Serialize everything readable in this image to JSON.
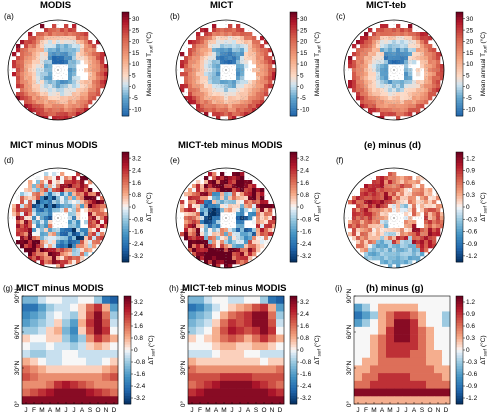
{
  "chart_data": [
    {
      "type": "map",
      "letter": "(a)",
      "title": "MODIS",
      "scheme": "temp",
      "colorbar": {
        "label": "Mean annual T",
        "sub": "surf",
        "unit": "(°C)",
        "ticks": [
          "30",
          "25",
          "20",
          "15",
          "10",
          "5",
          "0",
          "-5",
          "-10"
        ],
        "range": [
          -13,
          33
        ]
      }
    },
    {
      "type": "map",
      "letter": "(b)",
      "title": "MICT",
      "scheme": "temp",
      "colorbar": {
        "label": "Mean annual T",
        "sub": "surf",
        "unit": "(°C)",
        "ticks": [
          "30",
          "25",
          "20",
          "15",
          "10",
          "5",
          "0",
          "-5",
          "-10"
        ],
        "range": [
          -13,
          33
        ]
      }
    },
    {
      "type": "map",
      "letter": "(c)",
      "title": "MICT-teb",
      "scheme": "temp",
      "colorbar": {
        "label": "Mean annual T",
        "sub": "surf",
        "unit": "(°C)",
        "ticks": [
          "30",
          "25",
          "20",
          "15",
          "10",
          "5",
          "0",
          "-5",
          "-10"
        ],
        "range": [
          -13,
          33
        ]
      }
    },
    {
      "type": "map",
      "letter": "(d)",
      "title": "MICT minus MODIS",
      "scheme": "diff",
      "colorbar": {
        "label": "ΔT",
        "sub": "surf",
        "unit": "(°C)",
        "ticks": [
          "3.2",
          "2.4",
          "1.6",
          "0.8",
          "0",
          "-0.8",
          "-1.6",
          "-2.4",
          "-3.2"
        ],
        "range": [
          -3.6,
          3.6
        ]
      }
    },
    {
      "type": "map",
      "letter": "(e)",
      "title": "MICT-teb minus MODIS",
      "scheme": "diff",
      "colorbar": {
        "label": "ΔT",
        "sub": "surf",
        "unit": "(°C)",
        "ticks": [
          "3.2",
          "2.4",
          "1.6",
          "0.8",
          "0",
          "-0.8",
          "-1.6",
          "-2.4",
          "-3.2"
        ],
        "range": [
          -3.6,
          3.6
        ]
      }
    },
    {
      "type": "map",
      "letter": "(f)",
      "title": "(e) minus (d)",
      "scheme": "diff2",
      "colorbar": {
        "label": "ΔT",
        "sub": "surf",
        "unit": "(°C)",
        "ticks": [
          "1.2",
          "0.9",
          "0.6",
          "0.3",
          "0",
          "-0.3",
          "-0.6",
          "-0.9",
          "-1.2"
        ],
        "range": [
          -1.35,
          1.35
        ]
      }
    },
    {
      "type": "heatmap",
      "letter": "(g)",
      "title": "MICT minus MODIS",
      "x": [
        "J",
        "F",
        "M",
        "A",
        "M",
        "J",
        "J",
        "A",
        "S",
        "O",
        "N",
        "D"
      ],
      "y_ticks": [
        "0°",
        "30°N",
        "60°N",
        "90°N"
      ],
      "colorbar": {
        "label": "ΔT",
        "sub": "surf",
        "unit": "(°C)",
        "ticks": [
          "3.2",
          "2.4",
          "1.6",
          "0.8",
          "0",
          "-0.8",
          "-1.6",
          "-2.4",
          "-3.2"
        ],
        "range": [
          -3.6,
          3.6
        ]
      },
      "rows_lat_desc": [
        [
          -1.2,
          -1.2,
          -0.4,
          0,
          0,
          -0.4,
          -0.4,
          0,
          0,
          -0.8,
          -2.4,
          -2.8
        ],
        [
          -2.4,
          -2.4,
          -1.6,
          -0.8,
          -0.4,
          -0.4,
          0,
          0.4,
          1.6,
          2.4,
          0.8,
          -1.6
        ],
        [
          -2.0,
          -1.6,
          -1.2,
          -0.4,
          0,
          -0.4,
          -0.8,
          0.4,
          2.0,
          3.2,
          1.6,
          -0.8
        ],
        [
          -1.6,
          -1.2,
          -0.8,
          -0.4,
          0.4,
          -0.8,
          -1.6,
          0.8,
          2.4,
          3.2,
          2.0,
          -0.4
        ],
        [
          -0.8,
          -0.8,
          -0.4,
          0.4,
          0.8,
          -1.2,
          -2.0,
          0.4,
          2.0,
          3.2,
          2.4,
          0
        ],
        [
          0.4,
          0,
          0,
          0.4,
          0.4,
          -0.8,
          -1.6,
          -0.8,
          1.2,
          2.4,
          1.6,
          0.8
        ],
        [
          0,
          -0.4,
          -0.4,
          0,
          -0.4,
          -0.4,
          -0.8,
          -0.4,
          0.4,
          0.8,
          0.4,
          0
        ],
        [
          -0.4,
          -0.8,
          -0.8,
          -0.4,
          -0.4,
          0,
          0,
          -0.4,
          -0.4,
          -0.4,
          -0.4,
          -0.4
        ],
        [
          0.8,
          0.4,
          0,
          -0.4,
          -0.4,
          0,
          0,
          0,
          -0.4,
          -0.4,
          0,
          0.4
        ],
        [
          1.6,
          1.2,
          0.8,
          0.4,
          0.4,
          0.4,
          0.4,
          0.4,
          0.4,
          0.4,
          0.8,
          1.2
        ],
        [
          2.0,
          1.6,
          1.2,
          1.2,
          1.2,
          1.2,
          1.2,
          1.2,
          1.2,
          1.2,
          1.6,
          2.0
        ],
        [
          1.2,
          1.2,
          1.2,
          1.6,
          2.4,
          2.8,
          2.4,
          2.0,
          1.6,
          1.2,
          1.2,
          1.2
        ],
        [
          1.6,
          2.0,
          2.4,
          2.8,
          3.2,
          3.2,
          3.2,
          3.2,
          2.8,
          2.4,
          2.0,
          1.6
        ],
        [
          3.2,
          3.2,
          3.2,
          3.2,
          3.2,
          3.2,
          3.2,
          3.2,
          3.2,
          3.2,
          3.2,
          3.2
        ]
      ]
    },
    {
      "type": "heatmap",
      "letter": "(h)",
      "title": "MICT-teb minus MODIS",
      "x": [
        "J",
        "F",
        "M",
        "A",
        "M",
        "J",
        "J",
        "A",
        "S",
        "O",
        "N",
        "D"
      ],
      "y_ticks": [
        "0°",
        "30°N",
        "60°N",
        "90°N"
      ],
      "colorbar": {
        "label": "ΔT",
        "sub": "surf",
        "unit": "(°C)",
        "ticks": [
          "3.2",
          "2.4",
          "1.6",
          "0.8",
          "0",
          "-0.8",
          "-1.6",
          "-2.4",
          "-3.2"
        ],
        "range": [
          -3.6,
          3.6
        ]
      },
      "rows_lat_desc": [
        [
          -1.2,
          -1.2,
          -0.4,
          0,
          0,
          -0.4,
          -0.4,
          0,
          0,
          -0.8,
          -2.4,
          -2.8
        ],
        [
          -2.4,
          -2.0,
          -1.2,
          -0.4,
          0,
          0.4,
          0.8,
          1.2,
          2.0,
          2.4,
          0.8,
          -1.6
        ],
        [
          -1.6,
          -1.2,
          -0.8,
          0,
          0.8,
          1.6,
          2.0,
          2.4,
          3.2,
          3.2,
          1.6,
          -0.8
        ],
        [
          -1.2,
          -0.8,
          -0.4,
          0.4,
          1.6,
          2.4,
          2.0,
          2.4,
          3.2,
          3.2,
          2.0,
          -0.4
        ],
        [
          -0.8,
          -0.4,
          0,
          0.8,
          2.0,
          2.8,
          2.4,
          2.0,
          2.4,
          3.2,
          2.4,
          0
        ],
        [
          0.4,
          0,
          0.4,
          0.8,
          1.6,
          2.0,
          1.6,
          0.8,
          1.6,
          2.4,
          1.6,
          0.8
        ],
        [
          0,
          0,
          0,
          0.4,
          0.8,
          0.8,
          0.4,
          0.4,
          0.8,
          0.8,
          0.4,
          0
        ],
        [
          -0.4,
          -0.4,
          -0.4,
          0,
          0.4,
          0.4,
          0.4,
          0,
          0,
          -0.4,
          -0.4,
          -0.4
        ],
        [
          0.8,
          0.4,
          0.4,
          0.4,
          0.4,
          0.4,
          0.4,
          0.4,
          0.4,
          0,
          0.4,
          0.4
        ],
        [
          1.6,
          1.2,
          1.2,
          1.2,
          1.2,
          1.2,
          1.2,
          1.2,
          1.2,
          1.2,
          1.2,
          1.6
        ],
        [
          2.0,
          2.0,
          2.0,
          2.0,
          2.4,
          2.4,
          2.4,
          2.4,
          2.0,
          2.0,
          2.0,
          2.0
        ],
        [
          1.6,
          2.0,
          2.4,
          2.8,
          3.2,
          3.2,
          3.2,
          3.2,
          2.8,
          2.4,
          2.0,
          1.6
        ],
        [
          2.4,
          2.8,
          3.2,
          3.2,
          3.2,
          3.2,
          3.2,
          3.2,
          3.2,
          3.2,
          2.8,
          2.4
        ],
        [
          3.2,
          3.2,
          3.2,
          3.2,
          3.2,
          3.2,
          3.2,
          3.2,
          3.2,
          3.2,
          3.2,
          3.2
        ]
      ]
    },
    {
      "type": "heatmap",
      "letter": "(i)",
      "title": "(h) minus (g)",
      "x": [
        "J",
        "F",
        "M",
        "A",
        "M",
        "J",
        "J",
        "A",
        "S",
        "O",
        "N",
        "D"
      ],
      "y_ticks": [
        "0°",
        "30°N",
        "60°N",
        "90°N"
      ],
      "colorbar": {
        "label": "ΔT",
        "sub": "surf",
        "unit": "(°C)",
        "ticks": [
          "1.2",
          "0.9",
          "0.6",
          "0.3",
          "0",
          "-0.3",
          "-0.6",
          "-0.9",
          "-1.2"
        ],
        "range": [
          -1.35,
          1.35
        ]
      },
      "rows_lat_desc": [
        [
          0,
          0,
          0,
          0,
          0,
          0,
          0,
          0,
          0,
          0,
          0,
          0
        ],
        [
          -0.6,
          -0.3,
          0,
          0.3,
          0.3,
          0.3,
          0.3,
          0.3,
          0,
          0,
          0,
          0
        ],
        [
          -0.9,
          -0.6,
          -0.3,
          0.3,
          0.6,
          0.9,
          0.9,
          0.6,
          0.3,
          0,
          0,
          -0.3
        ],
        [
          -0.6,
          -0.3,
          0,
          0.3,
          0.6,
          1.2,
          1.2,
          0.9,
          0.3,
          0,
          0,
          -0.3
        ],
        [
          0,
          0,
          0,
          0.3,
          0.9,
          1.2,
          1.2,
          0.9,
          0.6,
          0.3,
          0,
          0
        ],
        [
          0,
          0,
          0.3,
          0.6,
          0.9,
          1.2,
          1.2,
          0.9,
          0.6,
          0.3,
          0,
          0
        ],
        [
          0,
          0,
          0.3,
          0.6,
          0.9,
          0.9,
          0.9,
          0.9,
          0.6,
          0.3,
          0,
          0
        ],
        [
          0,
          0,
          0.3,
          0.6,
          0.9,
          0.9,
          0.9,
          0.6,
          0.6,
          0.3,
          0.3,
          0
        ],
        [
          0,
          0.3,
          0.3,
          0.6,
          0.6,
          0.6,
          0.6,
          0.6,
          0.6,
          0.3,
          0.3,
          0
        ],
        [
          0.3,
          0.3,
          0.6,
          0.6,
          0.6,
          0.6,
          0.6,
          0.6,
          0.6,
          0.6,
          0.3,
          0.3
        ],
        [
          0.3,
          0.6,
          0.6,
          0.9,
          0.9,
          0.9,
          0.9,
          0.6,
          0.6,
          0.6,
          0.6,
          0.3
        ],
        [
          0.6,
          0.6,
          0.9,
          0.9,
          0.9,
          0.9,
          0.9,
          0.9,
          0.9,
          0.6,
          0.6,
          0.6
        ],
        [
          1.2,
          1.2,
          1.2,
          1.2,
          1.2,
          1.2,
          1.2,
          1.2,
          1.2,
          1.2,
          1.2,
          1.2
        ],
        [
          0.3,
          0.3,
          0.3,
          0.3,
          0.3,
          0.3,
          0.3,
          0.3,
          0.3,
          0.3,
          0.3,
          0.3
        ]
      ]
    }
  ]
}
